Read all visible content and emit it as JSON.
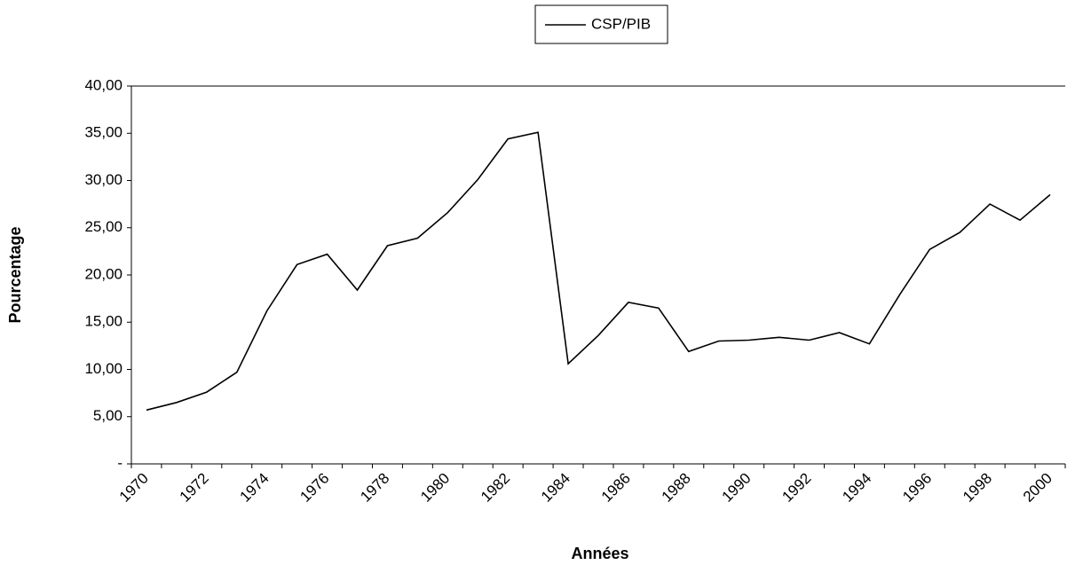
{
  "chart_data": {
    "type": "line",
    "legend": "top",
    "x_label": "Années",
    "y_label": "Pourcentage",
    "categories": [
      "1970",
      null,
      "1972",
      null,
      "1974",
      null,
      "1976",
      null,
      "1978",
      null,
      "1980",
      null,
      "1982",
      null,
      "1984",
      null,
      "1986",
      null,
      "1988",
      null,
      "1990",
      null,
      "1992",
      null,
      "1994",
      null,
      "1996",
      null,
      "1998",
      null,
      "2000"
    ],
    "series": [
      {
        "name": "CSP/PIB",
        "color": "#000000",
        "values": [
          5.7,
          6.5,
          7.6,
          9.7,
          16.2,
          21.1,
          22.2,
          18.4,
          23.1,
          23.9,
          26.6,
          30.1,
          34.4,
          35.1,
          10.6,
          13.6,
          17.1,
          16.5,
          11.9,
          13.0,
          13.1,
          13.4,
          13.1,
          13.9,
          12.7,
          17.9,
          22.7,
          24.5,
          27.5,
          25.8,
          28.5
        ]
      }
    ],
    "ylim": [
      0,
      40
    ],
    "yticks": [
      {
        "value": 0,
        "label": "-"
      },
      {
        "value": 5,
        "label": "5,00"
      },
      {
        "value": 10,
        "label": "10,00"
      },
      {
        "value": 15,
        "label": "15,00"
      },
      {
        "value": 20,
        "label": "20,00"
      },
      {
        "value": 25,
        "label": "25,00"
      },
      {
        "value": 30,
        "label": "30,00"
      },
      {
        "value": 35,
        "label": "35,00"
      },
      {
        "value": 40,
        "label": "40,00"
      }
    ]
  }
}
